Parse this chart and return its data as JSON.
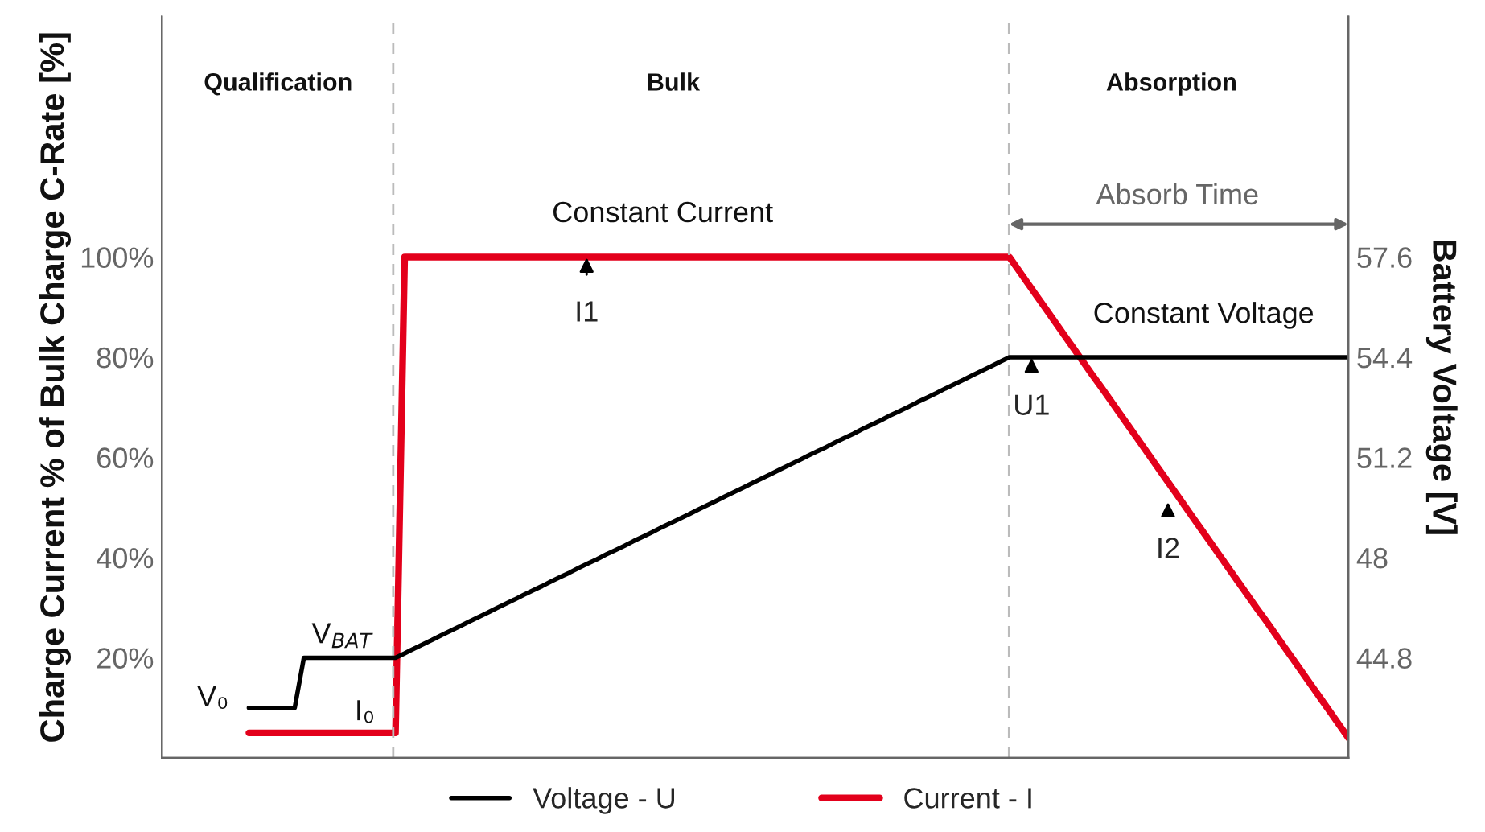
{
  "chart_data": {
    "type": "line",
    "categories": [
      null,
      null,
      null,
      null,
      null,
      null,
      null,
      null,
      null,
      null,
      null,
      null,
      null,
      null,
      null,
      null,
      null,
      null,
      null,
      null,
      null,
      null,
      null,
      null,
      null,
      null,
      null,
      null,
      null,
      null,
      null,
      null,
      null,
      null,
      null,
      null,
      null,
      null,
      null,
      null,
      null,
      null,
      null,
      null,
      null,
      null,
      null,
      null,
      null,
      null,
      null,
      null,
      null,
      null,
      null,
      null,
      null,
      null,
      null,
      null,
      null,
      null,
      null,
      null,
      null,
      null,
      null,
      null,
      null,
      null,
      null,
      null,
      null,
      null,
      null,
      null,
      null,
      null,
      null,
      null,
      null,
      null,
      null,
      null,
      null,
      null,
      null,
      null,
      null,
      null,
      null,
      null,
      null,
      null,
      null,
      null,
      null,
      null,
      null,
      null,
      null,
      null,
      null,
      null,
      null,
      null,
      null,
      null,
      null,
      null,
      null,
      null,
      null,
      null,
      null,
      null,
      null,
      null,
      null,
      null,
      null
    ],
    "ylim": [
      0,
      148
    ],
    "yticks": [
      {
        "value": 20,
        "label": "20%"
      },
      {
        "value": 40,
        "label": "40%"
      },
      {
        "value": 60,
        "label": "60%"
      },
      {
        "value": 80,
        "label": "80%"
      },
      {
        "value": 100,
        "label": "100%"
      }
    ],
    "y2lim": [
      41.6,
      65.28
    ],
    "y2ticks": [
      44.8,
      48,
      51.2,
      54.4,
      57.6
    ],
    "ylabel": "Charge Current % of Bulk Charge C-Rate [%]",
    "y2label": "Battery Voltage [V]",
    "series": [
      {
        "name": "Voltage - U",
        "color": "#000000",
        "axis": "y2",
        "values": [
          43.2,
          43.2,
          43.2,
          43.2,
          43.2,
          43.2,
          44.8,
          44.8,
          44.8,
          44.8,
          44.8,
          44.8,
          44.8,
          44.8,
          44.8,
          44.8,
          44.8,
          44.94,
          45.09,
          45.23,
          45.37,
          45.52,
          45.66,
          45.8,
          45.95,
          46.09,
          46.23,
          46.38,
          46.52,
          46.66,
          46.81,
          46.95,
          47.09,
          47.24,
          47.38,
          47.52,
          47.67,
          47.81,
          47.95,
          48.1,
          48.24,
          48.38,
          48.53,
          48.67,
          48.81,
          48.96,
          49.1,
          49.24,
          49.38,
          49.53,
          49.67,
          49.81,
          49.96,
          50.1,
          50.24,
          50.39,
          50.53,
          50.67,
          50.82,
          50.96,
          51.1,
          51.25,
          51.39,
          51.53,
          51.68,
          51.82,
          51.96,
          52.11,
          52.25,
          52.39,
          52.54,
          52.68,
          52.82,
          52.97,
          53.11,
          53.25,
          53.4,
          53.54,
          53.68,
          53.83,
          53.97,
          54.11,
          54.26,
          54.4,
          54.4,
          54.4,
          54.4,
          54.4,
          54.4,
          54.4,
          54.4,
          54.4,
          54.4,
          54.4,
          54.4,
          54.4,
          54.4,
          54.4,
          54.4,
          54.4,
          54.4,
          54.4,
          54.4,
          54.4,
          54.4,
          54.4,
          54.4,
          54.4,
          54.4,
          54.4,
          54.4,
          54.4,
          54.4,
          54.4,
          54.4,
          54.4,
          54.4,
          54.4,
          54.4,
          54.4,
          54.4
        ]
      },
      {
        "name": "Current - I",
        "color": "#e3001b",
        "values": [
          5,
          5,
          5,
          5,
          5,
          5,
          5,
          5,
          5,
          5,
          5,
          5,
          5,
          5,
          5,
          5,
          5,
          100,
          100,
          100,
          100,
          100,
          100,
          100,
          100,
          100,
          100,
          100,
          100,
          100,
          100,
          100,
          100,
          100,
          100,
          100,
          100,
          100,
          100,
          100,
          100,
          100,
          100,
          100,
          100,
          100,
          100,
          100,
          100,
          100,
          100,
          100,
          100,
          100,
          100,
          100,
          100,
          100,
          100,
          100,
          100,
          100,
          100,
          100,
          100,
          100,
          100,
          100,
          100,
          100,
          100,
          100,
          100,
          100,
          100,
          100,
          100,
          100,
          100,
          100,
          100,
          100,
          100,
          100,
          97.4,
          94.8,
          92.2,
          89.6,
          87.0,
          84.4,
          81.8,
          79.2,
          76.6,
          74.1,
          71.5,
          68.9,
          66.3,
          63.7,
          61.1,
          58.5,
          55.9,
          53.3,
          50.7,
          48.1,
          45.5,
          42.9,
          40.3,
          37.7,
          35.1,
          32.5,
          29.9,
          27.4,
          24.8,
          22.2,
          19.6,
          17.0,
          14.4,
          11.8,
          9.2,
          6.6,
          4.0
        ]
      }
    ],
    "annotations": [
      "Qualification",
      "Bulk",
      "Absorption",
      "Constant Current",
      "Constant Voltage",
      "I1",
      "U1",
      "I2",
      "V₀",
      "V$_{BAT}$",
      "I₀",
      "Absorb Time"
    ],
    "legend": "bottom",
    "grid": false
  }
}
